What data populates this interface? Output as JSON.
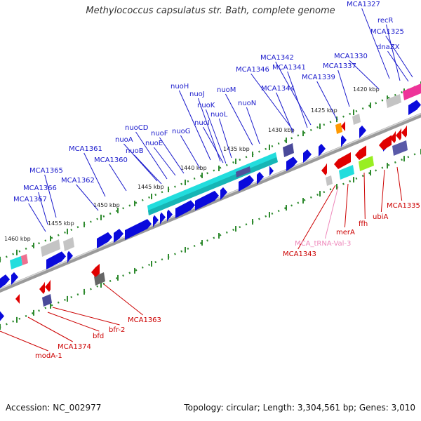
{
  "title": "Methylococcus capsulatus str. Bath, complete genome",
  "footer": {
    "accession": "Accession: NC_002977",
    "stats": "Topology: circular; Length: 3,304,561 bp; Genes: 3,010"
  },
  "colors": {
    "forward_gene": "#0a0adc",
    "reverse_gene": "#e00000",
    "forward_label": "#1a1acc",
    "reverse_label": "#cc0000",
    "trna_label": "#ee88bb",
    "backbone": "#888888",
    "tick": "#2e8a2e"
  },
  "kbp_ticks": [
    "1420 kbp",
    "1425 kbp",
    "1430 kbp",
    "1435 kbp",
    "1440 kbp",
    "1445 kbp",
    "1450 kbp",
    "1455 kbp",
    "1460 kbp"
  ],
  "forward_labels": [
    "MCA1327",
    "recR",
    "MCA1325",
    "dnaZX",
    "MCA1330",
    "MCA1342",
    "MCA1341",
    "MCA1337",
    "MCA1346",
    "MCA1339",
    "MCA1344",
    "nuoH",
    "nuoM",
    "nuoJ",
    "nuoK",
    "nuoN",
    "nuoL",
    "nuoI",
    "nuoCD",
    "nuoF",
    "nuoG",
    "nuoA",
    "nuoE",
    "nuoB",
    "MCA1361",
    "MCA1360",
    "MCA1365",
    "MCA1362",
    "MCA1366",
    "MCA1367"
  ],
  "reverse_labels": [
    "MCA1335",
    "ubiA",
    "ffh",
    "merA",
    "MCA_tRNA-Val-3",
    "MCA1343",
    "MCA1363",
    "bfr-2",
    "bfd",
    "MCA1374",
    "modA-1"
  ]
}
